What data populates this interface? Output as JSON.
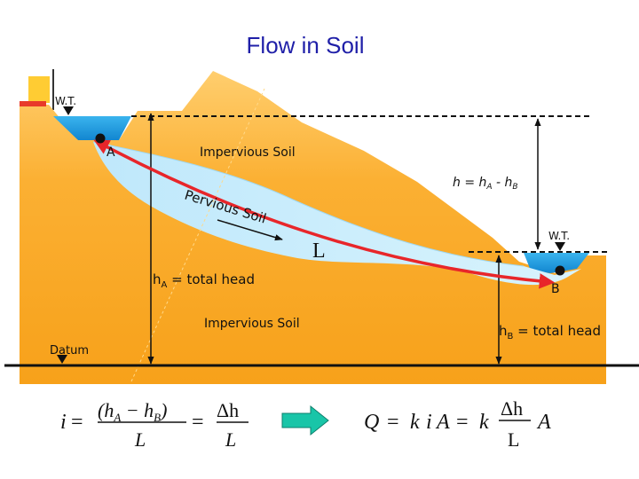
{
  "title": "Flow in Soil",
  "labels": {
    "wt_left": "W.T.",
    "wt_right": "W.T.",
    "point_a": "A",
    "point_b": "B",
    "impervious_top": "Impervious Soil",
    "impervious_bottom": "Impervious Soil",
    "pervious": "Pervious Soil",
    "length": "L",
    "datum": "Datum",
    "head_diff": {
      "h": "h",
      "eq": " = ",
      "ha": "h",
      "ha_sub": "A",
      "minus": " - ",
      "hb": "h",
      "hb_sub": "B"
    },
    "ha_total": {
      "h": "h",
      "sub": "A",
      "rest": " = total head"
    },
    "hb_total": {
      "h": "h",
      "sub": "B",
      "rest": " = total head"
    }
  },
  "equations": {
    "hydraulic_gradient": {
      "lhs": "i",
      "eq": "=",
      "num1": "(h",
      "sub_a": "A",
      "minus": " − h",
      "sub_b": "B",
      "close": ")",
      "den1": "L",
      "eq2": "=",
      "num2": "Δh",
      "den2": "L"
    },
    "darcy": {
      "q": "Q",
      "eq": "=",
      "k": "k",
      "i": "i",
      "a": "A",
      "eq2": "=",
      "k2": "k",
      "num": "Δh",
      "den": "L",
      "a2": "A"
    }
  },
  "colors": {
    "soil": "#f9a81f",
    "soil_light": "#ffd07a",
    "pervious": "#cfeffd",
    "water": "#1f9de0",
    "flow_arrow": "#e8262a",
    "implies_arrow": "#19c5a8",
    "title": "#1f1fa8"
  }
}
